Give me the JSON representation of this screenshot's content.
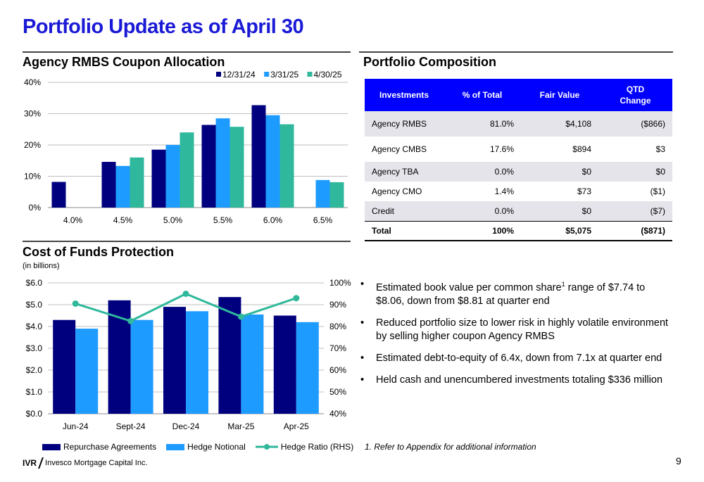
{
  "page": {
    "title": "Portfolio Update as of April 30",
    "page_number": "9",
    "footer_logo_mark": "IVR",
    "footer_logo_name": "Invesco Mortgage Capital Inc."
  },
  "colors": {
    "title_blue": "#1a1ad6",
    "navy": "#00007f",
    "light_blue": "#1e9bff",
    "teal": "#2fb89b",
    "header_blue": "#0000ff"
  },
  "coupon_chart": {
    "section_title": "Agency RMBS Coupon Allocation",
    "chart_data": {
      "type": "bar",
      "categories": [
        "4.0%",
        "4.5%",
        "5.0%",
        "5.5%",
        "6.0%",
        "6.5%"
      ],
      "series": [
        {
          "name": "12/31/24",
          "color": "#00007f",
          "values": [
            8.2,
            14.6,
            18.5,
            26.4,
            32.7,
            0
          ]
        },
        {
          "name": "3/31/25",
          "color": "#1e9bff",
          "values": [
            0,
            13.3,
            20.0,
            28.5,
            29.5,
            8.8
          ]
        },
        {
          "name": "4/30/25",
          "color": "#2fb89b",
          "values": [
            0,
            16.0,
            24.0,
            25.8,
            26.6,
            8.1
          ]
        }
      ],
      "yticks": [
        "0%",
        "10%",
        "20%",
        "30%",
        "40%"
      ],
      "ylim": [
        0,
        40
      ],
      "grid": true,
      "legend": "top-right"
    }
  },
  "funds_chart": {
    "section_title": "Cost of Funds Protection",
    "subtitle": "(in billions)",
    "chart_data": {
      "type": "bar",
      "categories": [
        "Jun-24",
        "Sept-24",
        "Dec-24",
        "Mar-25",
        "Apr-25"
      ],
      "series": [
        {
          "name": "Repurchase Agreements",
          "color": "#00007f",
          "values": [
            4.3,
            5.2,
            4.9,
            5.35,
            4.5
          ]
        },
        {
          "name": "Hedge Notional",
          "color": "#1e9bff",
          "values": [
            3.9,
            4.3,
            4.7,
            4.55,
            4.2
          ]
        },
        {
          "name": "Hedge Ratio (RHS)",
          "type": "line",
          "color": "#2fb89b",
          "values": [
            90.5,
            82.5,
            95.0,
            84.5,
            93.0
          ]
        }
      ],
      "yticks_left": [
        "$0.0",
        "$1.0",
        "$2.0",
        "$3.0",
        "$4.0",
        "$5.0",
        "$6.0"
      ],
      "ylim_left": [
        0,
        6
      ],
      "yticks_right": [
        "40%",
        "50%",
        "60%",
        "70%",
        "80%",
        "90%",
        "100%"
      ],
      "ylim_right": [
        40,
        100
      ],
      "grid": true,
      "legend": "bottom"
    }
  },
  "composition": {
    "section_title": "Portfolio Composition",
    "headers": [
      "Investments",
      "% of Total",
      "Fair Value",
      "QTD",
      "Change"
    ],
    "rows": [
      [
        "Agency RMBS",
        "81.0%",
        "$4,108",
        "($866)"
      ],
      [
        "Agency CMBS",
        "17.6%",
        "$894",
        "$3"
      ],
      [
        "Agency TBA",
        "0.0%",
        "$0",
        "$0"
      ],
      [
        "Agency CMO",
        "1.4%",
        "$73",
        "($1)"
      ],
      [
        "Credit",
        "0.0%",
        "$0",
        "($7)"
      ],
      [
        "Total",
        "100%",
        "$5,075",
        "($871)"
      ]
    ]
  },
  "bullets": {
    "b1_a": "Estimated book value per common share",
    "b1_sup": "1",
    "b1_b": " range of $7.74 to $8.06, down from $8.81 at quarter end",
    "b2": "Reduced portfolio size to lower risk in highly volatile environment by selling higher coupon Agency RMBS",
    "b3": "Estimated debt-to-equity of 6.4x, down from 7.1x at quarter end",
    "b4": "Held cash and unencumbered investments totaling $336 million"
  },
  "footnote": "1.    Refer to Appendix for additional information"
}
